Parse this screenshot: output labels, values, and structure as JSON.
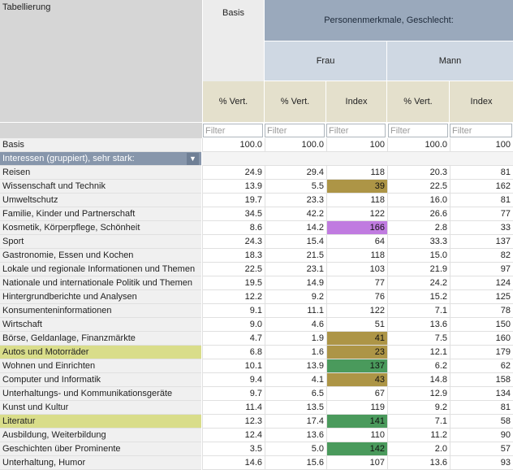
{
  "corner_label": "Tabellierung",
  "headers": {
    "basis": "Basis",
    "group": "Personenmerkmale, Geschlecht:",
    "frau": "Frau",
    "mann": "Mann",
    "cols": [
      "% Vert.",
      "% Vert.",
      "Index",
      "% Vert.",
      "Index"
    ]
  },
  "filter_placeholder": "Filter",
  "colors": {
    "olive": "#ad9546",
    "violet": "#c07be0",
    "green": "#4a9a5c",
    "row_highlight": "#d9dd8a",
    "header_blue": "#9aa9bc",
    "header_tan": "#e4e0cc"
  },
  "basis_row": {
    "label": "Basis",
    "values": [
      "100.0",
      "100.0",
      "100",
      "100.0",
      "100"
    ]
  },
  "group_row": {
    "label": "Interessen (gruppiert), sehr stark:",
    "icon": "double-chevron-down-icon"
  },
  "rows": [
    {
      "label": "Reisen",
      "values": [
        "24.9",
        "29.4",
        "118",
        "20.3",
        "81"
      ],
      "hl": false,
      "mark": ""
    },
    {
      "label": "Wissenschaft und Technik",
      "values": [
        "13.9",
        "5.5",
        "39",
        "22.5",
        "162"
      ],
      "hl": false,
      "mark": "olive"
    },
    {
      "label": "Umweltschutz",
      "values": [
        "19.7",
        "23.3",
        "118",
        "16.0",
        "81"
      ],
      "hl": false,
      "mark": ""
    },
    {
      "label": "Familie, Kinder und Partnerschaft",
      "values": [
        "34.5",
        "42.2",
        "122",
        "26.6",
        "77"
      ],
      "hl": false,
      "mark": ""
    },
    {
      "label": "Kosmetik, Körperpflege, Schönheit",
      "values": [
        "8.6",
        "14.2",
        "166",
        "2.8",
        "33"
      ],
      "hl": false,
      "mark": "violet"
    },
    {
      "label": "Sport",
      "values": [
        "24.3",
        "15.4",
        "64",
        "33.3",
        "137"
      ],
      "hl": false,
      "mark": ""
    },
    {
      "label": "Gastronomie, Essen und Kochen",
      "values": [
        "18.3",
        "21.5",
        "118",
        "15.0",
        "82"
      ],
      "hl": false,
      "mark": ""
    },
    {
      "label": "Lokale und regionale Informationen und Themen",
      "values": [
        "22.5",
        "23.1",
        "103",
        "21.9",
        "97"
      ],
      "hl": false,
      "mark": ""
    },
    {
      "label": "Nationale und internationale Politik und Themen",
      "values": [
        "19.5",
        "14.9",
        "77",
        "24.2",
        "124"
      ],
      "hl": false,
      "mark": ""
    },
    {
      "label": "Hintergrundberichte und Analysen",
      "values": [
        "12.2",
        "9.2",
        "76",
        "15.2",
        "125"
      ],
      "hl": false,
      "mark": ""
    },
    {
      "label": "Konsumenteninformationen",
      "values": [
        "9.1",
        "11.1",
        "122",
        "7.1",
        "78"
      ],
      "hl": false,
      "mark": ""
    },
    {
      "label": "Wirtschaft",
      "values": [
        "9.0",
        "4.6",
        "51",
        "13.6",
        "150"
      ],
      "hl": false,
      "mark": ""
    },
    {
      "label": "Börse, Geldanlage, Finanzmärkte",
      "values": [
        "4.7",
        "1.9",
        "41",
        "7.5",
        "160"
      ],
      "hl": false,
      "mark": "olive"
    },
    {
      "label": "Autos und Motorräder",
      "values": [
        "6.8",
        "1.6",
        "23",
        "12.1",
        "179"
      ],
      "hl": true,
      "mark": "olive"
    },
    {
      "label": "Wohnen und Einrichten",
      "values": [
        "10.1",
        "13.9",
        "137",
        "6.2",
        "62"
      ],
      "hl": false,
      "mark": "green"
    },
    {
      "label": "Computer und Informatik",
      "values": [
        "9.4",
        "4.1",
        "43",
        "14.8",
        "158"
      ],
      "hl": false,
      "mark": "olive"
    },
    {
      "label": "Unterhaltungs- und Kommunikationsgeräte",
      "values": [
        "9.7",
        "6.5",
        "67",
        "12.9",
        "134"
      ],
      "hl": false,
      "mark": ""
    },
    {
      "label": "Kunst und Kultur",
      "values": [
        "11.4",
        "13.5",
        "119",
        "9.2",
        "81"
      ],
      "hl": false,
      "mark": ""
    },
    {
      "label": "Literatur",
      "values": [
        "12.3",
        "17.4",
        "141",
        "7.1",
        "58"
      ],
      "hl": true,
      "mark": "green"
    },
    {
      "label": "Ausbildung, Weiterbildung",
      "values": [
        "12.4",
        "13.6",
        "110",
        "11.2",
        "90"
      ],
      "hl": false,
      "mark": ""
    },
    {
      "label": "Geschichten über Prominente",
      "values": [
        "3.5",
        "5.0",
        "142",
        "2.0",
        "57"
      ],
      "hl": false,
      "mark": "green"
    },
    {
      "label": "Unterhaltung, Humor",
      "values": [
        "14.6",
        "15.6",
        "107",
        "13.6",
        "93"
      ],
      "hl": false,
      "mark": ""
    }
  ]
}
